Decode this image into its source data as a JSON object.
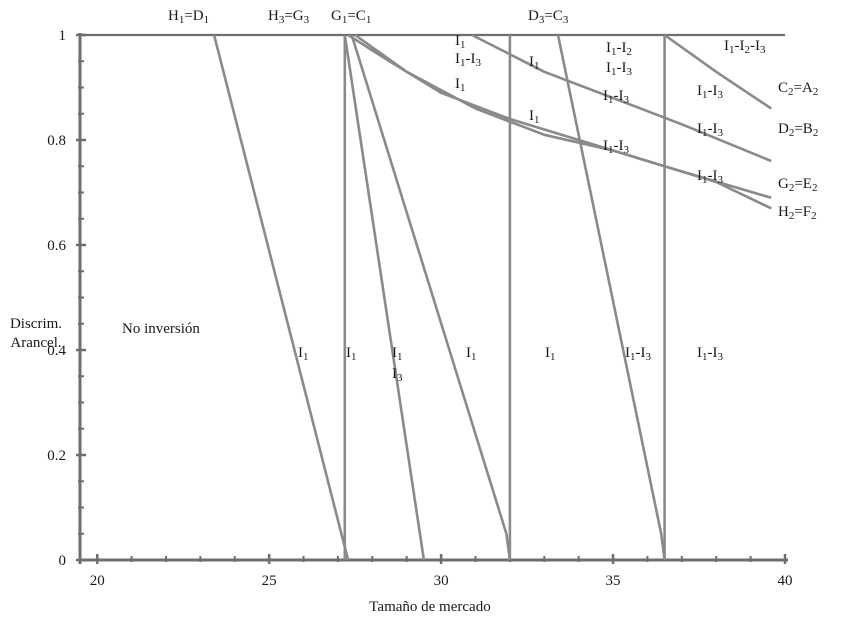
{
  "figure": {
    "xlabel": "Tamaño de mercado",
    "ylabel_line1": "Discrim.",
    "ylabel_line2": "Arancel."
  },
  "chart_data": {
    "type": "line",
    "xlim": [
      19.5,
      40
    ],
    "ylim": [
      0,
      1
    ],
    "x_ticks": [
      "20",
      "25",
      "30",
      "35",
      "40"
    ],
    "y_ticks": [
      "0",
      "0.2",
      "0.4",
      "0.6",
      "0.8",
      "1"
    ],
    "grid": false,
    "line_color": "#8a8a8a",
    "axis_color": "#6e6e6e",
    "boundaries": [
      {
        "id": "h1d1",
        "points": [
          [
            23.4,
            1
          ],
          [
            27.1,
            0.05
          ],
          [
            27.3,
            0
          ]
        ]
      },
      {
        "id": "h3g3-vert",
        "points": [
          [
            27.2,
            1
          ],
          [
            27.2,
            0
          ]
        ]
      },
      {
        "id": "h3g3-diag",
        "points": [
          [
            27.2,
            1
          ],
          [
            29.5,
            0
          ]
        ]
      },
      {
        "id": "g1c1-diag",
        "points": [
          [
            27.4,
            1
          ],
          [
            31.9,
            0.05
          ],
          [
            32.0,
            0
          ]
        ]
      },
      {
        "id": "vertical-32",
        "points": [
          [
            32.0,
            1
          ],
          [
            32.0,
            0
          ]
        ]
      },
      {
        "id": "d3c3-diag",
        "points": [
          [
            33.4,
            1
          ],
          [
            36.4,
            0.05
          ],
          [
            36.5,
            0
          ]
        ]
      },
      {
        "id": "vertical-365",
        "points": [
          [
            36.5,
            1
          ],
          [
            36.5,
            0
          ]
        ]
      }
    ],
    "curves": [
      {
        "id": "c2a2",
        "points": [
          [
            36.5,
            1.0
          ],
          [
            38.0,
            0.93
          ],
          [
            39.6,
            0.86
          ]
        ]
      },
      {
        "id": "d2b2",
        "points": [
          [
            30.9,
            1.0
          ],
          [
            33.0,
            0.93
          ],
          [
            35.0,
            0.88
          ],
          [
            37.0,
            0.83
          ],
          [
            39.6,
            0.76
          ]
        ]
      },
      {
        "id": "g2e2",
        "points": [
          [
            27.5,
            1.0
          ],
          [
            29.0,
            0.93
          ],
          [
            31.0,
            0.86
          ],
          [
            33.0,
            0.81
          ],
          [
            35.0,
            0.78
          ],
          [
            37.0,
            0.74
          ],
          [
            39.6,
            0.69
          ]
        ]
      },
      {
        "id": "h2f2",
        "points": [
          [
            27.3,
            1.0
          ],
          [
            28.5,
            0.95
          ],
          [
            30.0,
            0.89
          ],
          [
            32.0,
            0.84
          ],
          [
            34.0,
            0.8
          ],
          [
            36.0,
            0.76
          ],
          [
            38.0,
            0.72
          ],
          [
            39.6,
            0.67
          ]
        ]
      }
    ]
  },
  "top_labels": [
    {
      "base": "H",
      "sub": "1",
      "mid": "=D",
      "sub2": "1"
    },
    {
      "base": "H",
      "sub": "3",
      "mid": "=G",
      "sub2": "3"
    },
    {
      "base": "G",
      "sub": "1",
      "mid": "=C",
      "sub2": "1"
    },
    {
      "base": "D",
      "sub": "3",
      "mid": "=C",
      "sub2": "3"
    }
  ],
  "right_labels": [
    {
      "base": "C",
      "sub": "2",
      "mid": "=A",
      "sub2": "2"
    },
    {
      "base": "D",
      "sub": "2",
      "mid": "=B",
      "sub2": "2"
    },
    {
      "base": "G",
      "sub": "2",
      "mid": "=E",
      "sub2": "2"
    },
    {
      "base": "H",
      "sub": "2",
      "mid": "=F",
      "sub2": "2"
    }
  ],
  "region_labels": {
    "no_inversion": "No inversión",
    "i1_single": "I1",
    "i1_i3": "I1-I3",
    "i1_i2": "I1-I2",
    "i1_i2_i3": "I1-I2-I3",
    "i1_over_i3_line1": "I1",
    "i1_over_i3_line2": "I3"
  },
  "region_parts": {
    "I": "I",
    "dash": "-",
    "s1": "1",
    "s2": "2",
    "s3": "3"
  }
}
